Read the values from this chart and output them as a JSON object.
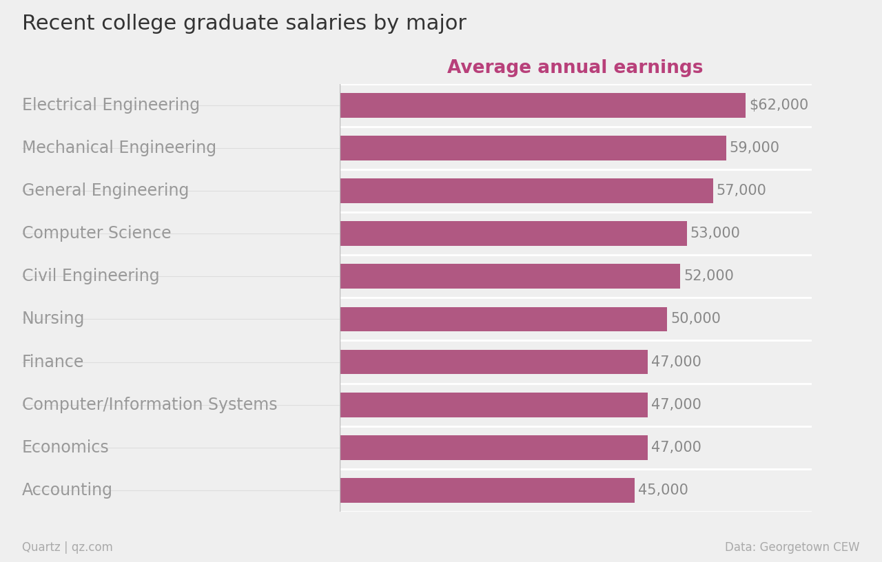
{
  "title": "Recent college graduate salaries by major",
  "subtitle": "Average annual earnings",
  "categories": [
    "Accounting",
    "Economics",
    "Computer/Information Systems",
    "Finance",
    "Nursing",
    "Civil Engineering",
    "Computer Science",
    "General Engineering",
    "Mechanical Engineering",
    "Electrical Engineering"
  ],
  "values": [
    45000,
    47000,
    47000,
    47000,
    50000,
    52000,
    53000,
    57000,
    59000,
    62000
  ],
  "labels": [
    "45,000",
    "47,000",
    "47,000",
    "47,000",
    "50,000",
    "52,000",
    "53,000",
    "57,000",
    "59,000",
    "$62,000"
  ],
  "bar_color": "#b05882",
  "background_color": "#efefef",
  "title_color": "#333333",
  "subtitle_color": "#b8407a",
  "value_label_color": "#888888",
  "category_color": "#999999",
  "footer_left": "Quartz | qz.com",
  "footer_right": "Data: Georgetown CEW",
  "footer_color": "#aaaaaa",
  "xlim_max": 72000,
  "separator_color": "#bbbbbb",
  "gridline_color": "#dddddd"
}
